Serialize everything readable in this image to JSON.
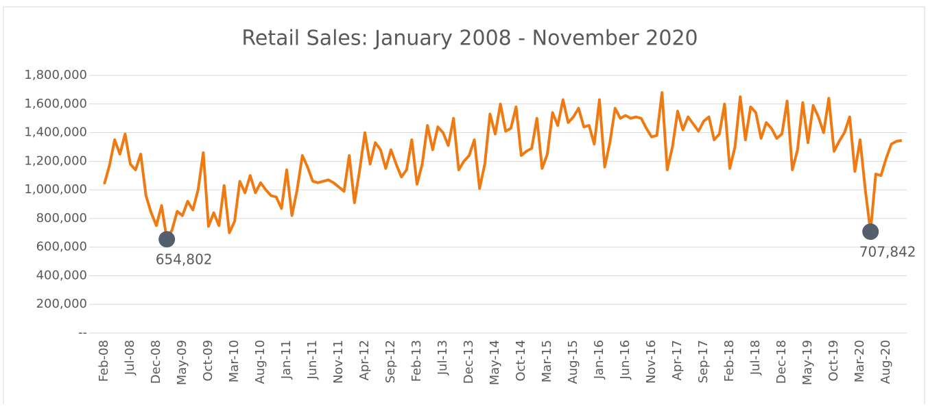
{
  "chart_data": {
    "type": "line",
    "title": "Retail Sales: January 2008 - November 2020",
    "categories": [
      "Feb-08",
      null,
      null,
      null,
      null,
      "Jul-08",
      null,
      null,
      null,
      null,
      "Dec-08",
      null,
      null,
      null,
      null,
      "May-09",
      null,
      null,
      null,
      null,
      "Oct-09",
      null,
      null,
      null,
      null,
      "Mar-10",
      null,
      null,
      null,
      null,
      "Aug-10",
      null,
      null,
      null,
      null,
      "Jan-11",
      null,
      null,
      null,
      null,
      "Jun-11",
      null,
      null,
      null,
      null,
      "Nov-11",
      null,
      null,
      null,
      null,
      "Apr-12",
      null,
      null,
      null,
      null,
      "Sep-12",
      null,
      null,
      null,
      null,
      "Feb-13",
      null,
      null,
      null,
      null,
      "Jul-13",
      null,
      null,
      null,
      null,
      "Dec-13",
      null,
      null,
      null,
      null,
      "May-14",
      null,
      null,
      null,
      null,
      "Oct-14",
      null,
      null,
      null,
      null,
      "Mar-15",
      null,
      null,
      null,
      null,
      "Aug-15",
      null,
      null,
      null,
      null,
      "Jan-16",
      null,
      null,
      null,
      null,
      "Jun-16",
      null,
      null,
      null,
      null,
      "Nov-16",
      null,
      null,
      null,
      null,
      "Apr-17",
      null,
      null,
      null,
      null,
      "Sep-17",
      null,
      null,
      null,
      null,
      "Feb-18",
      null,
      null,
      null,
      null,
      "Jul-18",
      null,
      null,
      null,
      null,
      "Dec-18",
      null,
      null,
      null,
      null,
      "May-19",
      null,
      null,
      null,
      null,
      "Oct-19",
      null,
      null,
      null,
      null,
      "Mar-20",
      null,
      null,
      null,
      null,
      "Aug-20",
      null,
      null,
      null
    ],
    "series": [
      {
        "name": "Retail Sales",
        "color": "#f07a12",
        "values": [
          1040000,
          1170000,
          1350000,
          1250000,
          1390000,
          1180000,
          1140000,
          1250000,
          960000,
          840000,
          750000,
          890000,
          654802,
          720000,
          850000,
          820000,
          920000,
          860000,
          1000000,
          1260000,
          745000,
          840000,
          750000,
          1030000,
          700000,
          780000,
          1060000,
          980000,
          1100000,
          980000,
          1050000,
          1000000,
          960000,
          950000,
          870000,
          1140000,
          820000,
          1000000,
          1240000,
          1160000,
          1060000,
          1050000,
          1060000,
          1070000,
          1050000,
          1020000,
          990000,
          1240000,
          910000,
          1140000,
          1400000,
          1180000,
          1330000,
          1280000,
          1150000,
          1280000,
          1180000,
          1090000,
          1140000,
          1350000,
          1040000,
          1180000,
          1450000,
          1280000,
          1440000,
          1400000,
          1310000,
          1500000,
          1140000,
          1200000,
          1240000,
          1350000,
          1010000,
          1180000,
          1530000,
          1390000,
          1600000,
          1410000,
          1430000,
          1580000,
          1240000,
          1270000,
          1290000,
          1500000,
          1150000,
          1250000,
          1540000,
          1450000,
          1630000,
          1470000,
          1510000,
          1570000,
          1440000,
          1450000,
          1320000,
          1630000,
          1160000,
          1330000,
          1570000,
          1500000,
          1520000,
          1500000,
          1510000,
          1500000,
          1430000,
          1370000,
          1380000,
          1680000,
          1140000,
          1300000,
          1550000,
          1420000,
          1510000,
          1460000,
          1410000,
          1480000,
          1510000,
          1350000,
          1390000,
          1600000,
          1150000,
          1300000,
          1650000,
          1350000,
          1580000,
          1540000,
          1360000,
          1470000,
          1430000,
          1360000,
          1390000,
          1620000,
          1140000,
          1280000,
          1610000,
          1330000,
          1590000,
          1510000,
          1400000,
          1640000,
          1270000,
          1340000,
          1400000,
          1510000,
          1130000,
          1350000,
          1000000,
          707842,
          1110000,
          1100000,
          1220000,
          1320000,
          1340000,
          1345000
        ],
        "value_labels": [
          null,
          null,
          null,
          null,
          null,
          null,
          null,
          null,
          null,
          null,
          null,
          null,
          "654,802",
          null,
          null,
          null,
          null,
          null,
          null,
          null,
          null,
          null,
          null,
          null,
          null,
          null,
          null,
          null,
          null,
          null,
          null,
          null,
          null,
          null,
          null,
          null,
          null,
          null,
          null,
          null,
          null,
          null,
          null,
          null,
          null,
          null,
          null,
          null,
          null,
          null,
          null,
          null,
          null,
          null,
          null,
          null,
          null,
          null,
          null,
          null,
          null,
          null,
          null,
          null,
          null,
          null,
          null,
          null,
          null,
          null,
          null,
          null,
          null,
          null,
          null,
          null,
          null,
          null,
          null,
          null,
          null,
          null,
          null,
          null,
          null,
          null,
          null,
          null,
          null,
          null,
          null,
          null,
          null,
          null,
          null,
          null,
          null,
          null,
          null,
          null,
          null,
          null,
          null,
          null,
          null,
          null,
          null,
          null,
          null,
          null,
          null,
          null,
          null,
          null,
          null,
          null,
          null,
          null,
          null,
          null,
          null,
          null,
          null,
          null,
          null,
          null,
          null,
          null,
          null,
          null,
          null,
          null,
          null,
          null,
          null,
          null,
          null,
          null,
          null,
          null,
          null,
          null,
          null,
          null,
          null,
          null,
          null,
          "707,842",
          null,
          null,
          null,
          null,
          null,
          null
        ]
      }
    ],
    "ylim": [
      0,
      1800000
    ],
    "yticks": [
      {
        "value": 0,
        "label": "--"
      },
      {
        "value": 200000,
        "label": "200,000"
      },
      {
        "value": 400000,
        "label": "400,000"
      },
      {
        "value": 600000,
        "label": "600,000"
      },
      {
        "value": 800000,
        "label": "800,000"
      },
      {
        "value": 1000000,
        "label": "1,000,000"
      },
      {
        "value": 1200000,
        "label": "1,200,000"
      },
      {
        "value": 1400000,
        "label": "1,400,000"
      },
      {
        "value": 1600000,
        "label": "1,600,000"
      },
      {
        "value": 1800000,
        "label": "1,800,000"
      }
    ],
    "grid": true,
    "marker_color": "#555f6b"
  }
}
